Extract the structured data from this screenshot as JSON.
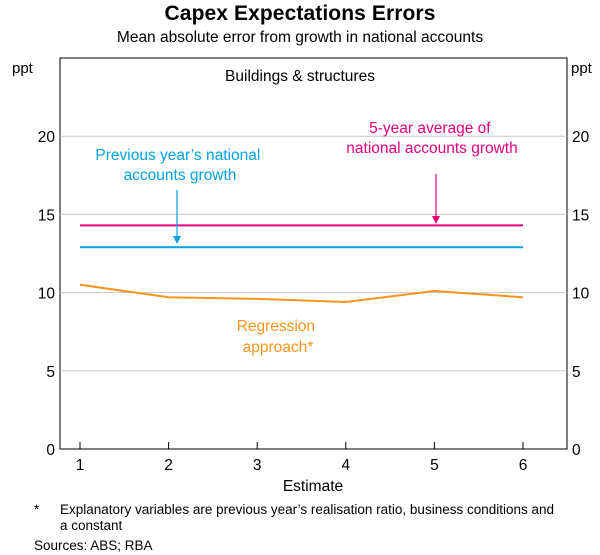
{
  "chart_data": {
    "type": "line",
    "title": "Capex Expectations Errors",
    "subtitle": "Mean absolute error from growth in national accounts",
    "panel_title": "Buildings & structures",
    "xlabel": "Estimate",
    "ylabel_left": "ppt",
    "ylabel_right": "ppt",
    "ylim": [
      0,
      25
    ],
    "yticks": [
      0,
      5,
      10,
      15,
      20
    ],
    "x": [
      1,
      2,
      3,
      4,
      5,
      6
    ],
    "series": [
      {
        "name": "5-year average of national accounts growth",
        "label_lines": [
          "5-year average of",
          "national accounts growth"
        ],
        "color": "#e6007e",
        "values": [
          14.3,
          14.3,
          14.3,
          14.3,
          14.3,
          14.3
        ]
      },
      {
        "name": "Previous year's national accounts growth",
        "label_lines": [
          "Previous year’s national",
          "accounts growth"
        ],
        "color": "#00a3e0",
        "values": [
          12.9,
          12.9,
          12.9,
          12.9,
          12.9,
          12.9
        ]
      },
      {
        "name": "Regression approach*",
        "label_lines": [
          "Regression",
          "approach*"
        ],
        "color": "#f7941d",
        "values": [
          10.5,
          9.7,
          9.6,
          9.4,
          10.1,
          9.7
        ]
      }
    ]
  },
  "footnote": {
    "marker": "*",
    "text": "Explanatory variables are previous year’s realisation ratio, business conditions and a constant"
  },
  "sources": "Sources: ABS; RBA"
}
